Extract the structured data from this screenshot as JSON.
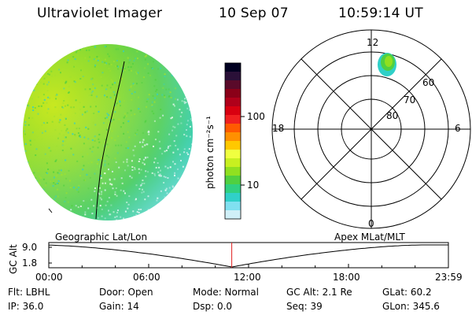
{
  "header": {
    "instrument": "Ultraviolet Imager",
    "date": "10 Sep 07",
    "time": "10:59:14 UT"
  },
  "colorbar": {
    "unit_label": "photon cm⁻²s⁻¹",
    "ticks": [
      "100",
      "10"
    ],
    "colors": [
      "#000020",
      "#2a1038",
      "#5a0a2a",
      "#8a0018",
      "#b0001a",
      "#d80010",
      "#f02020",
      "#ff5a00",
      "#ff9000",
      "#ffc800",
      "#f0ff40",
      "#c8f020",
      "#90e020",
      "#50d040",
      "#30d080",
      "#30d0c8",
      "#80e0f0",
      "#d0f0f8"
    ]
  },
  "polar_plot": {
    "mlt_labels": {
      "top": "12",
      "bottom": "0",
      "left": "18",
      "right": "6"
    },
    "lat_labels": [
      "60",
      "70",
      "80"
    ]
  },
  "geo_panel": {
    "left_label": "Geographic Lat/Lon",
    "right_label": "Apex MLat/MLT"
  },
  "altitude_plot": {
    "ylabel": "GC Alt",
    "y_ticks": [
      "9.0",
      "1.8"
    ],
    "x_ticks": [
      "00:00",
      "06:00",
      "12:00",
      "18:00",
      "23:59"
    ],
    "current_time_hours": 10.99
  },
  "info": {
    "flt": "Flt: LBHL",
    "door": "Door: Open",
    "mode": "Mode: Normal",
    "gc_alt": "GC Alt: 2.1 Re",
    "glat": "GLat:  60.2",
    "ip": "IP: 36.0",
    "gain": "Gain: 14",
    "dsp": "Dsp:     0.0",
    "seq": "Seq: 39",
    "glon": "GLon: 345.6"
  }
}
